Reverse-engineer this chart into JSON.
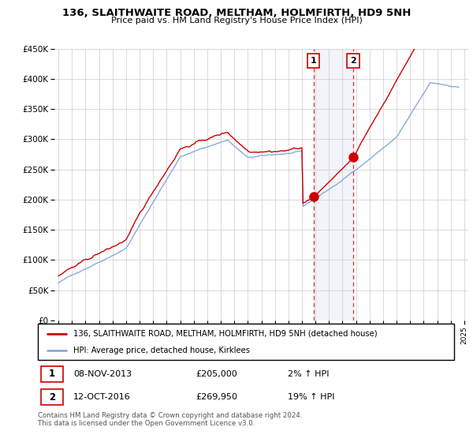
{
  "title": "136, SLAITHWAITE ROAD, MELTHAM, HOLMFIRTH, HD9 5NH",
  "subtitle": "Price paid vs. HM Land Registry's House Price Index (HPI)",
  "ylim": [
    0,
    450000
  ],
  "yticks": [
    0,
    50000,
    100000,
    150000,
    200000,
    250000,
    300000,
    350000,
    400000,
    450000
  ],
  "x_start_year": 1995,
  "x_end_year": 2025,
  "hpi_color": "#88aadd",
  "price_color": "#cc0000",
  "background_color": "#ffffff",
  "grid_color": "#cccccc",
  "legend_label_price": "136, SLAITHWAITE ROAD, MELTHAM, HOLMFIRTH, HD9 5NH (detached house)",
  "legend_label_hpi": "HPI: Average price, detached house, Kirklees",
  "sale1_label": "1",
  "sale1_date": "08-NOV-2013",
  "sale1_price": "£205,000",
  "sale1_hpi": "2% ↑ HPI",
  "sale1_year": 2013.85,
  "sale1_value": 205000,
  "sale2_label": "2",
  "sale2_date": "12-OCT-2016",
  "sale2_price": "£269,950",
  "sale2_hpi": "19% ↑ HPI",
  "sale2_year": 2016.78,
  "sale2_value": 269950,
  "footnote": "Contains HM Land Registry data © Crown copyright and database right 2024.\nThis data is licensed under the Open Government Licence v3.0."
}
